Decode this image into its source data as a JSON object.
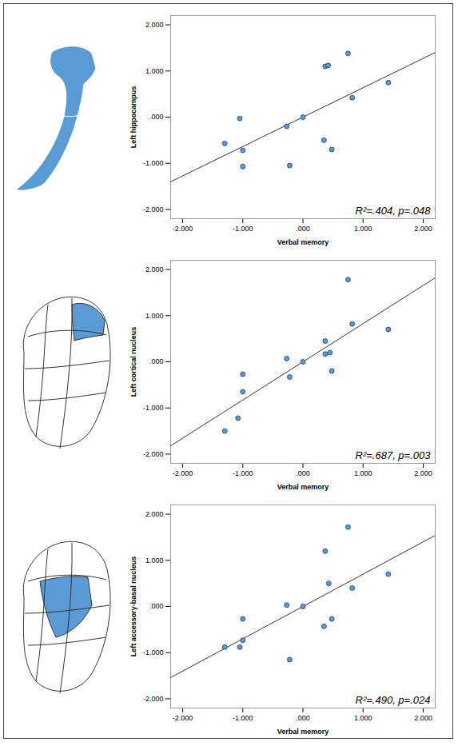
{
  "chart_data": [
    {
      "type": "scatter",
      "color": "#5b9bd5",
      "marker": "circle",
      "x_label": "Verbal memory",
      "y_label": "Left hippocampus",
      "annotation": "R²=.404, p=.048",
      "x": [
        -1.3,
        -1.05,
        -1.0,
        -1.0,
        -0.27,
        -0.22,
        0.0,
        0.35,
        0.37,
        0.42,
        0.48,
        0.75,
        0.82,
        1.42
      ],
      "values": [
        -0.57,
        -0.03,
        -0.72,
        -1.07,
        -0.2,
        -1.05,
        0.0,
        -0.5,
        1.1,
        1.12,
        -0.7,
        1.38,
        0.42,
        0.75
      ],
      "fit_line": {
        "x": [
          -2.2,
          2.2
        ],
        "y": [
          -1.4,
          1.4
        ]
      },
      "xlim": [
        -2.2,
        2.2
      ],
      "ylim": [
        -2.2,
        2.2
      ],
      "xticks": [
        {
          "value": -2,
          "label": "-2.000"
        },
        {
          "value": -1,
          "label": "-1.000"
        },
        {
          "value": 0,
          "label": ".000"
        },
        {
          "value": 1,
          "label": "1.000"
        },
        {
          "value": 2,
          "label": "2.000"
        }
      ],
      "yticks": [
        {
          "value": -2,
          "label": "-2.000"
        },
        {
          "value": -1,
          "label": "-1.000"
        },
        {
          "value": 0,
          "label": ".000"
        },
        {
          "value": 1,
          "label": "1.000"
        },
        {
          "value": 2,
          "label": "2.000"
        }
      ],
      "grid": false
    },
    {
      "type": "scatter",
      "color": "#5b9bd5",
      "marker": "circle",
      "x_label": "Verbal memory",
      "y_label": "Left cortical nucleus",
      "annotation": "R²=.687, p=.003",
      "x": [
        -1.3,
        -1.08,
        -1.0,
        -1.0,
        -0.27,
        -0.22,
        0.0,
        0.37,
        0.37,
        0.45,
        0.48,
        0.75,
        0.82,
        1.42
      ],
      "values": [
        -1.5,
        -1.22,
        -0.27,
        -0.65,
        0.07,
        -0.33,
        0.0,
        0.45,
        0.17,
        0.2,
        -0.2,
        1.78,
        0.82,
        0.7
      ],
      "fit_line": {
        "x": [
          -2.2,
          2.2
        ],
        "y": [
          -1.82,
          1.82
        ]
      },
      "xlim": [
        -2.2,
        2.2
      ],
      "ylim": [
        -2.2,
        2.2
      ],
      "xticks": [
        {
          "value": -2,
          "label": "-2.000"
        },
        {
          "value": -1,
          "label": "-1.000"
        },
        {
          "value": 0,
          "label": ".000"
        },
        {
          "value": 1,
          "label": "1.000"
        },
        {
          "value": 2,
          "label": "2.000"
        }
      ],
      "yticks": [
        {
          "value": -2,
          "label": "-2.000"
        },
        {
          "value": -1,
          "label": "-1.000"
        },
        {
          "value": 0,
          "label": ".000"
        },
        {
          "value": 1,
          "label": "1.000"
        },
        {
          "value": 2,
          "label": "2.000"
        }
      ],
      "grid": false
    },
    {
      "type": "scatter",
      "color": "#5b9bd5",
      "marker": "circle",
      "x_label": "Verbal memory",
      "y_label": "Left accessory-basal nucleus",
      "annotation": "R²=.490, p=.024",
      "x": [
        -1.3,
        -1.05,
        -1.0,
        -1.0,
        -0.27,
        -0.22,
        0.0,
        0.35,
        0.37,
        0.43,
        0.48,
        0.75,
        0.82,
        1.42
      ],
      "values": [
        -0.88,
        -0.88,
        -0.27,
        -0.73,
        0.03,
        -1.15,
        0.0,
        -0.43,
        1.2,
        0.5,
        -0.27,
        1.72,
        0.4,
        0.7
      ],
      "fit_line": {
        "x": [
          -2.2,
          2.2
        ],
        "y": [
          -1.54,
          1.54
        ]
      },
      "xlim": [
        -2.2,
        2.2
      ],
      "ylim": [
        -2.2,
        2.2
      ],
      "xticks": [
        {
          "value": -2,
          "label": "-2.000"
        },
        {
          "value": -1,
          "label": "-1.000"
        },
        {
          "value": 0,
          "label": ".000"
        },
        {
          "value": 1,
          "label": "1.000"
        },
        {
          "value": 2,
          "label": "2.000"
        }
      ],
      "yticks": [
        {
          "value": -2,
          "label": "-2.000"
        },
        {
          "value": -1,
          "label": "-1.000"
        },
        {
          "value": 0,
          "label": ".000"
        },
        {
          "value": 1,
          "label": "1.000"
        },
        {
          "value": 2,
          "label": "2.000"
        }
      ],
      "grid": false
    }
  ]
}
